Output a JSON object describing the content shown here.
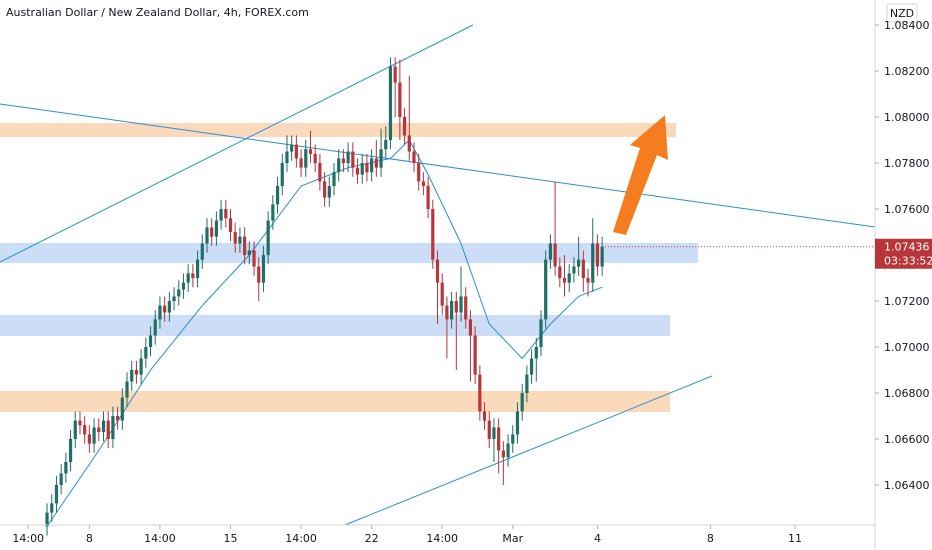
{
  "chart_data": {
    "type": "candlestick",
    "title": "Australian Dollar / New Zealand Dollar, 4h, FOREX.com",
    "currency": "NZD",
    "countdown": "03:33:52",
    "up_color": "#1f6f66",
    "down_color": "#b8363a",
    "ema_color": "#2a8fd6",
    "xlim": [
      -10,
      176
    ],
    "xticks": [
      {
        "value": -4,
        "label": "14:00"
      },
      {
        "value": 9,
        "label": "8"
      },
      {
        "value": 24,
        "label": "14:00"
      },
      {
        "value": 39,
        "label": "15"
      },
      {
        "value": 54,
        "label": "14:00"
      },
      {
        "value": 69,
        "label": "22"
      },
      {
        "value": 84,
        "label": "14:00"
      },
      {
        "value": 99,
        "label": "Mar"
      },
      {
        "value": 117,
        "label": "4"
      },
      {
        "value": 141,
        "label": "8"
      },
      {
        "value": 159,
        "label": "11"
      }
    ],
    "ylim": [
      1.06226,
      1.08509
    ],
    "yticks": [
      {
        "value": 1.064,
        "label": "1.06400"
      },
      {
        "value": 1.066,
        "label": "1.06600"
      },
      {
        "value": 1.068,
        "label": "1.06800"
      },
      {
        "value": 1.07,
        "label": "1.07000"
      },
      {
        "value": 1.072,
        "label": "1.07200"
      },
      {
        "value": 1.076,
        "label": "1.07600"
      },
      {
        "value": 1.078,
        "label": "1.07800"
      },
      {
        "value": 1.08,
        "label": "1.08000"
      },
      {
        "value": 1.082,
        "label": "1.08200"
      },
      {
        "value": 1.084,
        "label": "1.08400"
      }
    ],
    "open": [
      1.0622,
      1.0628,
      1.0632,
      1.064,
      1.0645,
      1.065,
      1.066,
      1.0668,
      1.0666,
      1.0662,
      1.0658,
      1.0665,
      1.0663,
      1.0668,
      1.066,
      1.067,
      1.0668,
      1.0678,
      1.0685,
      1.069,
      1.0688,
      1.0695,
      1.07,
      1.0705,
      1.0712,
      1.0718,
      1.0715,
      1.072,
      1.0722,
      1.0725,
      1.0728,
      1.0732,
      1.073,
      1.0738,
      1.0745,
      1.0752,
      1.0748,
      1.0755,
      1.076,
      1.0756,
      1.075,
      1.0745,
      1.0748,
      1.074,
      1.0742,
      1.0735,
      1.0728,
      1.074,
      1.0755,
      1.0762,
      1.077,
      1.078,
      1.0785,
      1.0788,
      1.0782,
      1.0778,
      1.0786,
      1.0784,
      1.078,
      1.0772,
      1.0765,
      1.077,
      1.0776,
      1.0782,
      1.078,
      1.0785,
      1.0778,
      1.0775,
      1.078,
      1.0776,
      1.0782,
      1.0778,
      1.0786,
      1.079,
      1.0822,
      1.0815,
      1.08,
      1.0792,
      1.0785,
      1.078,
      1.0772,
      1.077,
      1.076,
      1.0738,
      1.0728,
      1.0718,
      1.0712,
      1.072,
      1.0715,
      1.0722,
      1.0712,
      1.0705,
      1.0688,
      1.0672,
      1.0668,
      1.066,
      1.0665,
      1.0655,
      1.0652,
      1.0658,
      1.0662,
      1.0672,
      1.068,
      1.0688,
      1.0695,
      1.07,
      1.0712,
      1.0738,
      1.0745,
      1.0735,
      1.073,
      1.0728,
      1.0732,
      1.0735,
      1.0738,
      1.073,
      1.0728,
      1.0745,
      1.0735
    ],
    "high": [
      1.0632,
      1.0636,
      1.0644,
      1.0649,
      1.0654,
      1.0664,
      1.0672,
      1.0672,
      1.067,
      1.0666,
      1.0669,
      1.0669,
      1.0672,
      1.0672,
      1.0674,
      1.0674,
      1.0682,
      1.0689,
      1.0694,
      1.0694,
      1.0699,
      1.0704,
      1.0709,
      1.0716,
      1.0722,
      1.0722,
      1.0724,
      1.0726,
      1.0729,
      1.0732,
      1.0736,
      1.0736,
      1.0742,
      1.0749,
      1.0756,
      1.0756,
      1.0759,
      1.0764,
      1.0764,
      1.076,
      1.0754,
      1.0752,
      1.0752,
      1.0746,
      1.0746,
      1.0739,
      1.0744,
      1.0759,
      1.0766,
      1.0774,
      1.0784,
      1.0792,
      1.0792,
      1.0792,
      1.0786,
      1.079,
      1.0794,
      1.0788,
      1.0784,
      1.0776,
      1.0774,
      1.078,
      1.0786,
      1.0786,
      1.0789,
      1.0789,
      1.0782,
      1.0784,
      1.0784,
      1.0786,
      1.079,
      1.0795,
      1.0796,
      1.0826,
      1.0826,
      1.0825,
      1.0804,
      1.0818,
      1.0789,
      1.0784,
      1.0776,
      1.0774,
      1.0764,
      1.0742,
      1.0732,
      1.0722,
      1.0724,
      1.0724,
      1.0735,
      1.0726,
      1.0716,
      1.0709,
      1.0692,
      1.0676,
      1.0672,
      1.0669,
      1.0669,
      1.0659,
      1.0662,
      1.0666,
      1.0676,
      1.0684,
      1.0692,
      1.0699,
      1.0704,
      1.0716,
      1.0742,
      1.0749,
      1.0772,
      1.0739,
      1.074,
      1.0736,
      1.0739,
      1.0748,
      1.0742,
      1.0734,
      1.0756,
      1.0749,
      1.0748
    ],
    "low": [
      1.0618,
      1.0624,
      1.0628,
      1.0636,
      1.0641,
      1.0646,
      1.0656,
      1.0662,
      1.0658,
      1.0654,
      1.0654,
      1.0659,
      1.0659,
      1.0656,
      1.0656,
      1.0664,
      1.0664,
      1.0674,
      1.0681,
      1.0684,
      1.0684,
      1.0691,
      1.0696,
      1.0701,
      1.0708,
      1.0711,
      1.0711,
      1.0716,
      1.0718,
      1.0721,
      1.0724,
      1.0726,
      1.0726,
      1.0734,
      1.0741,
      1.0744,
      1.0744,
      1.0751,
      1.0752,
      1.0746,
      1.0741,
      1.0741,
      1.0736,
      1.0736,
      1.0731,
      1.072,
      1.0724,
      1.0736,
      1.0751,
      1.0758,
      1.0766,
      1.0776,
      1.0781,
      1.0778,
      1.0774,
      1.0774,
      1.078,
      1.0776,
      1.0768,
      1.0761,
      1.0761,
      1.0766,
      1.0772,
      1.0776,
      1.0776,
      1.0774,
      1.0771,
      1.0771,
      1.0772,
      1.0772,
      1.0774,
      1.0774,
      1.0782,
      1.0786,
      1.08,
      1.079,
      1.0788,
      1.0781,
      1.0776,
      1.0768,
      1.0766,
      1.0756,
      1.0734,
      1.071,
      1.0714,
      1.0695,
      1.0708,
      1.069,
      1.0711,
      1.0708,
      1.0685,
      1.0684,
      1.0668,
      1.0664,
      1.0656,
      1.065,
      1.0645,
      1.064,
      1.0648,
      1.0654,
      1.0658,
      1.0668,
      1.0676,
      1.0684,
      1.0685,
      1.0696,
      1.0708,
      1.0734,
      1.0731,
      1.0726,
      1.0722,
      1.0724,
      1.0728,
      1.0731,
      1.0724,
      1.0722,
      1.0724,
      1.0731,
      1.0731
    ],
    "close": [
      1.0628,
      1.0632,
      1.064,
      1.0645,
      1.065,
      1.066,
      1.0668,
      1.0666,
      1.0662,
      1.0658,
      1.0665,
      1.0663,
      1.0668,
      1.066,
      1.067,
      1.0668,
      1.0678,
      1.0685,
      1.069,
      1.0688,
      1.0695,
      1.07,
      1.0705,
      1.0712,
      1.0718,
      1.0715,
      1.072,
      1.0722,
      1.0725,
      1.0728,
      1.0732,
      1.073,
      1.0738,
      1.0745,
      1.0752,
      1.0748,
      1.0755,
      1.076,
      1.0756,
      1.075,
      1.0745,
      1.0748,
      1.074,
      1.0742,
      1.0735,
      1.0728,
      1.074,
      1.0755,
      1.0762,
      1.077,
      1.078,
      1.0785,
      1.0788,
      1.0782,
      1.0778,
      1.0786,
      1.0784,
      1.078,
      1.0772,
      1.0765,
      1.077,
      1.0776,
      1.0782,
      1.078,
      1.0785,
      1.0778,
      1.0775,
      1.078,
      1.0776,
      1.0782,
      1.0778,
      1.0786,
      1.079,
      1.0822,
      1.0815,
      1.08,
      1.0792,
      1.0785,
      1.078,
      1.0772,
      1.077,
      1.076,
      1.0738,
      1.0728,
      1.0718,
      1.0712,
      1.072,
      1.0715,
      1.0722,
      1.0712,
      1.0705,
      1.0688,
      1.0672,
      1.0668,
      1.066,
      1.0665,
      1.0655,
      1.0652,
      1.0658,
      1.0662,
      1.0672,
      1.068,
      1.0688,
      1.0695,
      1.07,
      1.0712,
      1.0738,
      1.0745,
      1.0735,
      1.073,
      1.0728,
      1.0732,
      1.0735,
      1.0738,
      1.073,
      1.0728,
      1.0745,
      1.0735,
      1.07436
    ],
    "ema": {
      "x": [
        0,
        11,
        22,
        33,
        43,
        54,
        64,
        73,
        77,
        81,
        88,
        94,
        101,
        107,
        113,
        118
      ],
      "values": [
        1.0622,
        1.0655,
        1.069,
        1.0718,
        1.074,
        1.077,
        1.0778,
        1.0782,
        1.079,
        1.0775,
        1.0745,
        1.071,
        1.0695,
        1.071,
        1.0722,
        1.0726
      ]
    }
  }
}
